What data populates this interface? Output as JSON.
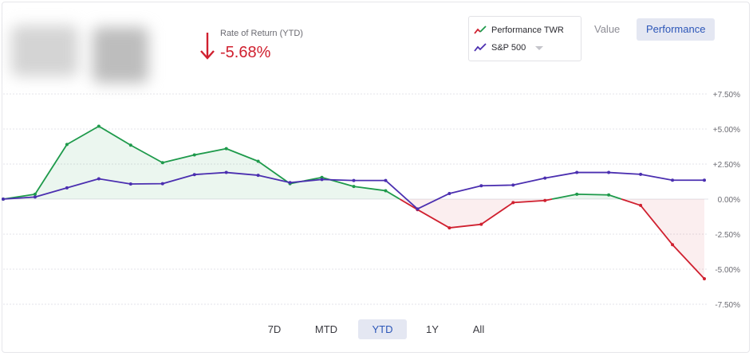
{
  "header": {
    "rate_label": "Rate of Return (YTD)",
    "rate_value": "-5.68%"
  },
  "legend": {
    "items": [
      {
        "label": "Performance TWR",
        "icon": "trend-line-red-green-icon"
      },
      {
        "label": "S&P 500",
        "icon": "trend-line-purple-icon",
        "has_dropdown": true
      }
    ]
  },
  "view_toggle": {
    "value_label": "Value",
    "performance_label": "Performance",
    "selected": "Performance"
  },
  "range_tabs": {
    "items": [
      "7D",
      "MTD",
      "YTD",
      "1Y",
      "All"
    ],
    "selected": "YTD"
  },
  "colors": {
    "positive": "#1e9a4b",
    "negative": "#d0202f",
    "benchmark": "#4b2fb0",
    "down_arrow": "#d0202f"
  },
  "chart_data": {
    "type": "line",
    "title": "",
    "xlabel": "",
    "ylabel": "",
    "ylim": [
      -7.5,
      7.5
    ],
    "y_ticks": [
      7.5,
      5.0,
      2.5,
      0.0,
      -2.5,
      -5.0,
      -7.5
    ],
    "y_tick_labels": [
      "+7.50%",
      "+5.00%",
      "+2.50%",
      "0.00%",
      "-2.50%",
      "-5.00%",
      "-7.50%"
    ],
    "grid": true,
    "y_axis_position": "right",
    "x": [
      0,
      1,
      2,
      3,
      4,
      5,
      6,
      7,
      8,
      9,
      10,
      11,
      12,
      13,
      14,
      15,
      16,
      17,
      18,
      19,
      20,
      21,
      22
    ],
    "series": [
      {
        "name": "Performance TWR",
        "values": [
          0.0,
          0.35,
          3.9,
          5.2,
          3.85,
          2.6,
          3.15,
          3.6,
          2.7,
          1.1,
          1.55,
          0.9,
          0.6,
          -0.75,
          -2.05,
          -1.8,
          -0.25,
          -0.1,
          0.35,
          0.3,
          -0.45,
          -3.25,
          -5.68
        ]
      },
      {
        "name": "S&P 500",
        "values": [
          0.0,
          0.15,
          0.8,
          1.45,
          1.08,
          1.1,
          1.75,
          1.9,
          1.7,
          1.18,
          1.4,
          1.33,
          1.33,
          -0.7,
          0.4,
          0.95,
          1.0,
          1.5,
          1.9,
          1.9,
          1.77,
          1.35,
          1.35
        ]
      }
    ]
  }
}
